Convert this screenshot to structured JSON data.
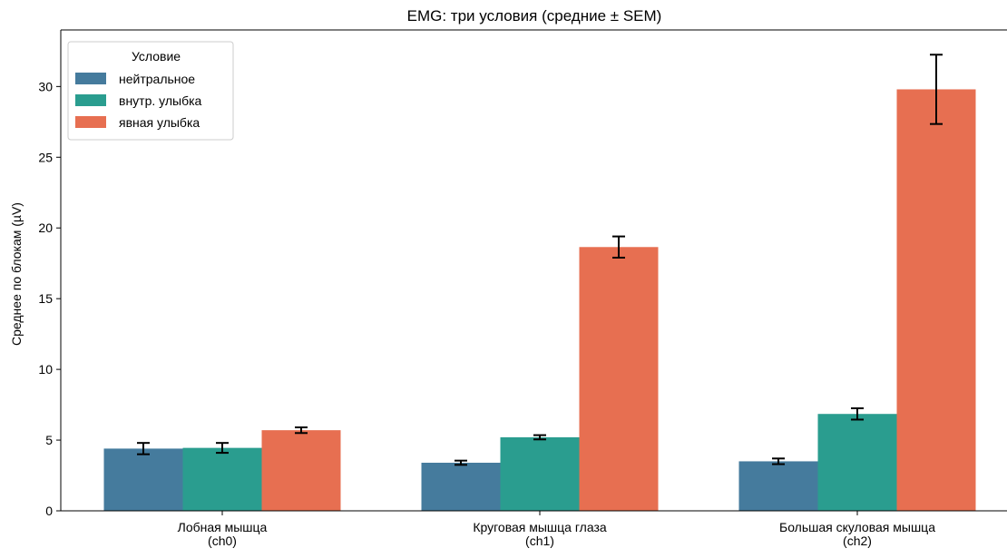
{
  "chart_data": {
    "type": "bar",
    "title": "EMG: три условия (средние ± SEM)",
    "ylabel": "Среднее по блокам (µV)",
    "xlabel": "",
    "categories": [
      [
        "Лобная мышца",
        "(ch0)"
      ],
      [
        "Круговая мышца глаза",
        "(ch1)"
      ],
      [
        "Большая скуловая мышца",
        "(ch2)"
      ]
    ],
    "ylim": [
      0,
      34
    ],
    "yticks": [
      0,
      5,
      10,
      15,
      20,
      25,
      30
    ],
    "grid": false,
    "legend": {
      "title": "Условие",
      "placement": "top-left"
    },
    "series": [
      {
        "name": "нейтральное",
        "color": "#457b9d",
        "values": [
          4.4,
          3.4,
          3.5
        ],
        "sem": [
          0.4,
          0.15,
          0.2
        ]
      },
      {
        "name": "внутр. улыбка",
        "color": "#2a9d8f",
        "values": [
          4.45,
          5.2,
          6.85
        ],
        "sem": [
          0.35,
          0.15,
          0.4
        ]
      },
      {
        "name": "явная улыбка",
        "color": "#e76f51",
        "values": [
          5.7,
          18.65,
          29.8
        ],
        "sem": [
          0.2,
          0.75,
          2.45
        ]
      }
    ]
  }
}
